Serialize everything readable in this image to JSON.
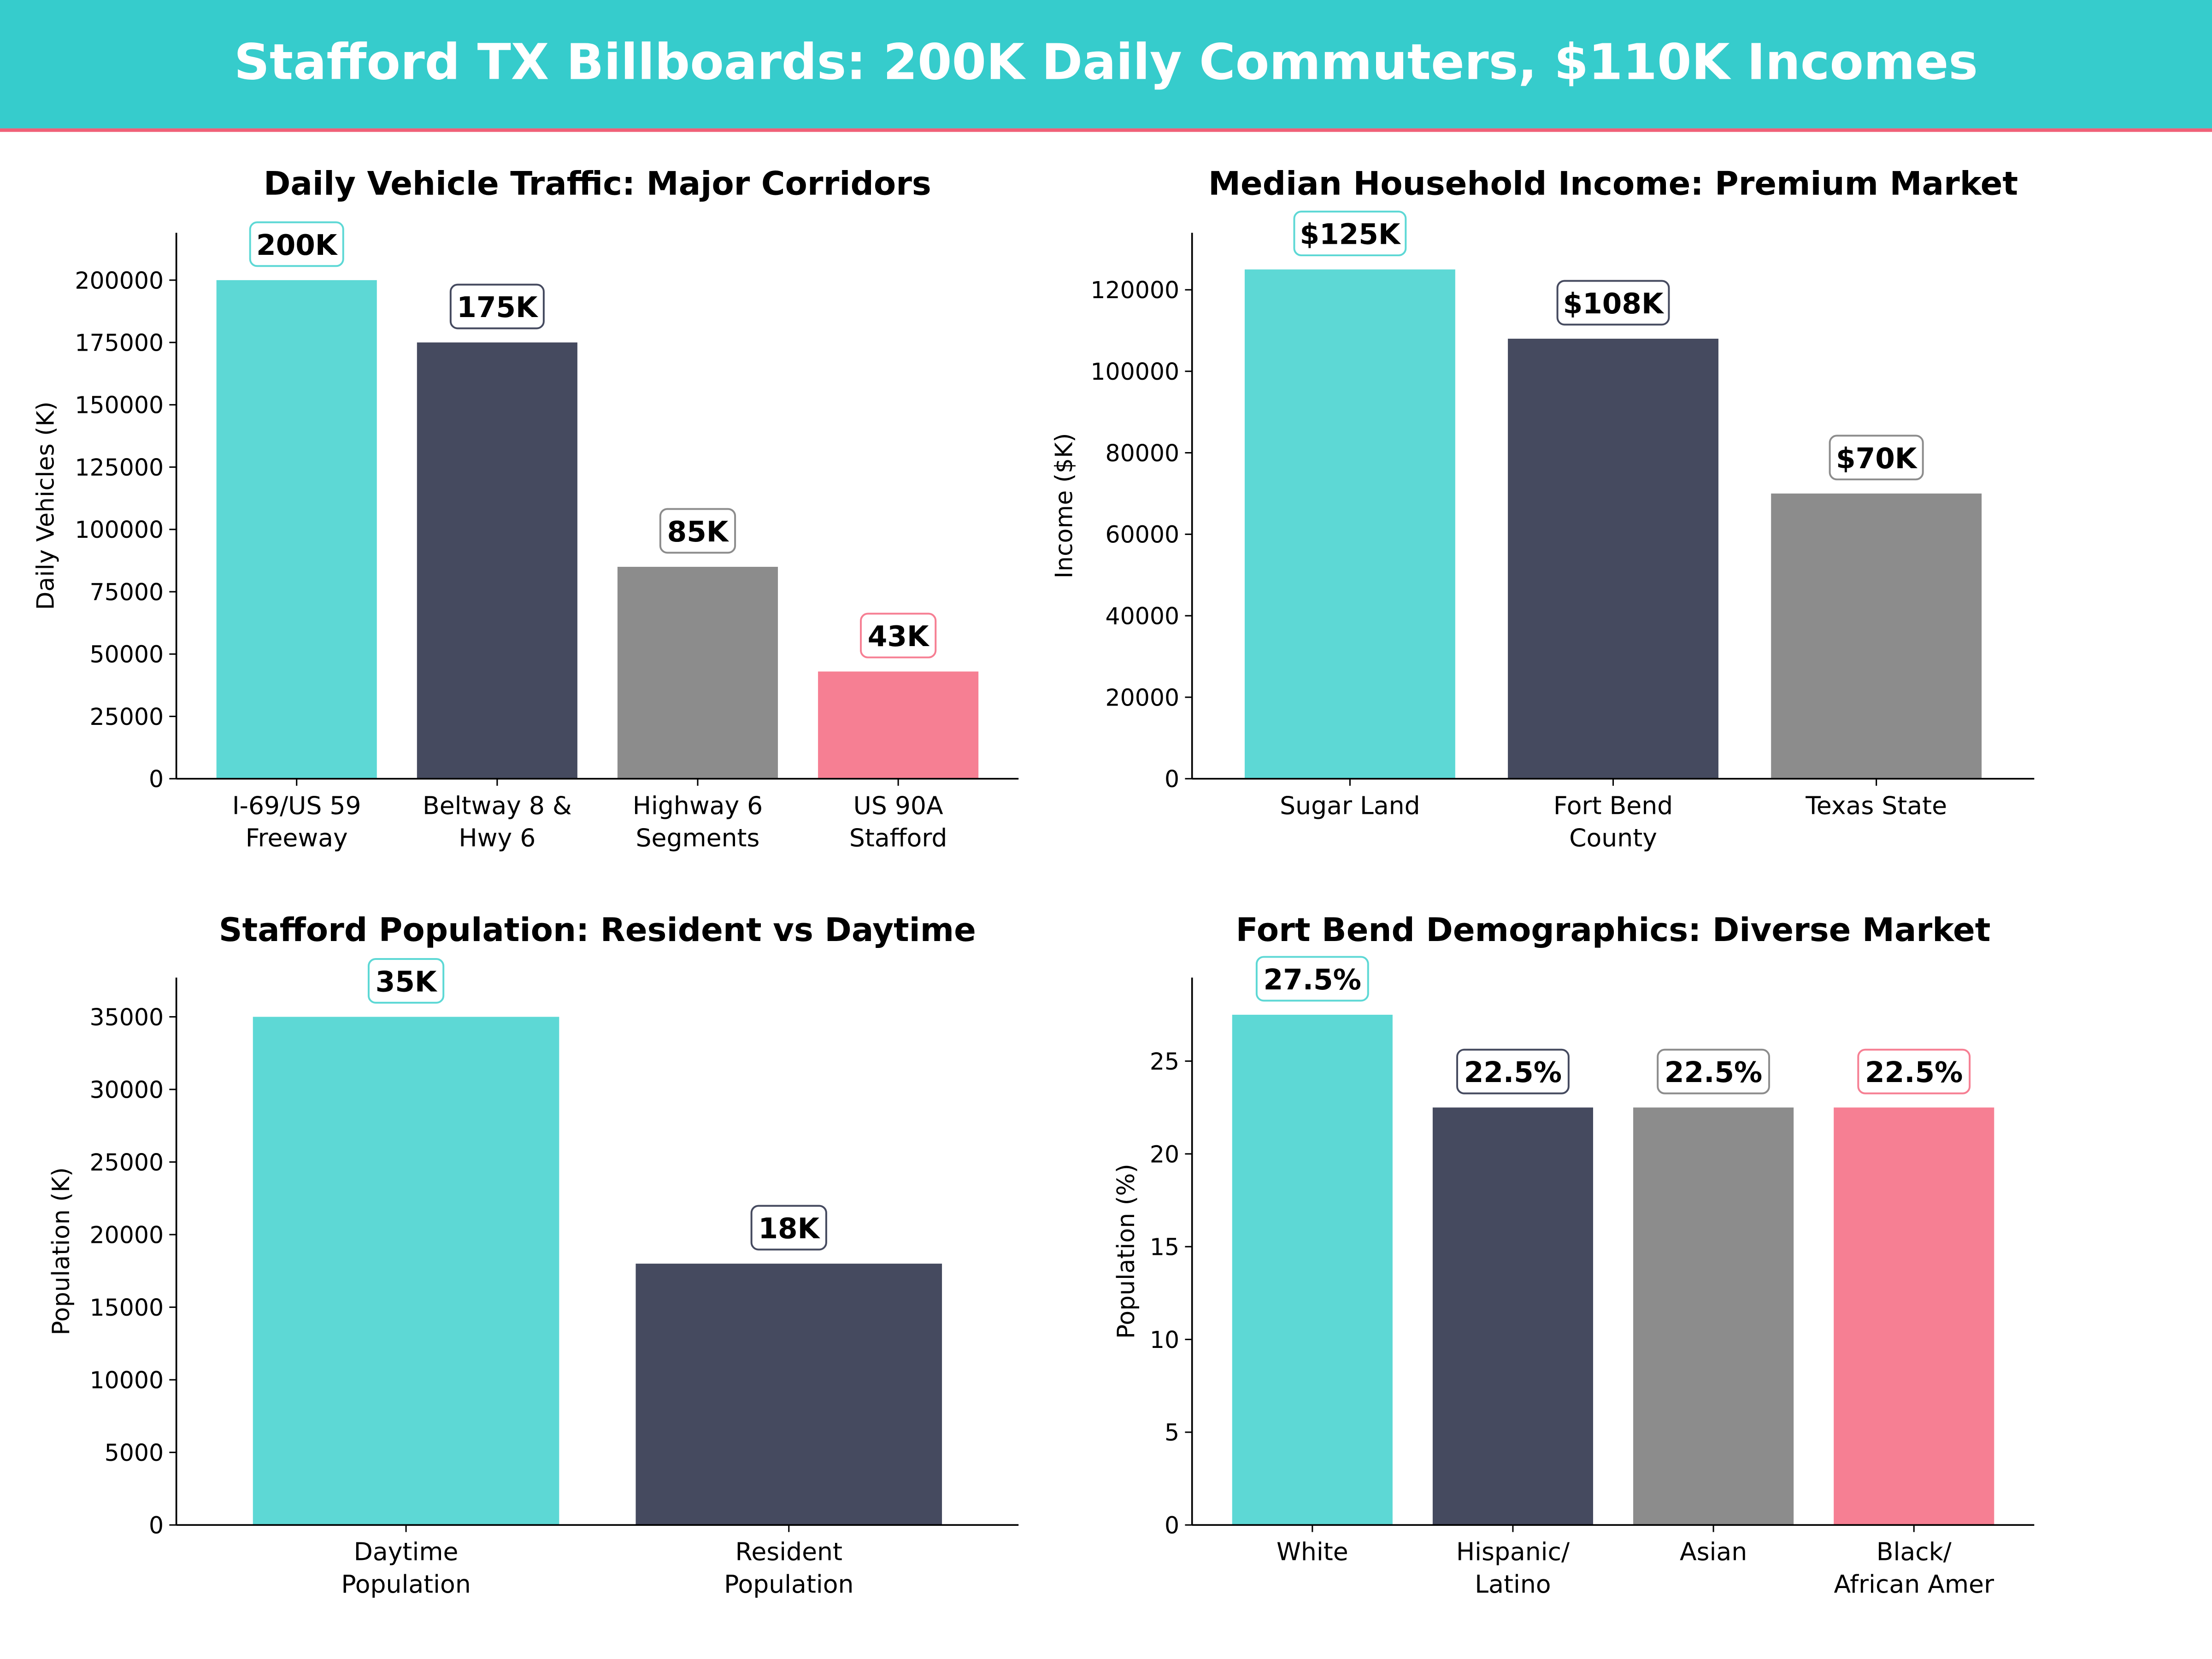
{
  "header": {
    "title": "Stafford TX Billboards: 200K Daily Commuters, $110K Incomes"
  },
  "colors": {
    "header_bg": "#36CCCC",
    "header_rule": "#F06078",
    "teal": "#5DD8D5",
    "navy": "#454A5F",
    "gray": "#8C8C8C",
    "pink": "#F67F93"
  },
  "chart_data": [
    {
      "type": "bar",
      "title": "Daily Vehicle Traffic: Major Corridors",
      "xlabel": "",
      "ylabel": "Daily Vehicles (K)",
      "categories": [
        "I-69/US 59\nFreeway",
        "Beltway 8 &\nHwy 6",
        "Highway 6\nSegments",
        "US 90A\nStafford"
      ],
      "values": [
        200000,
        175000,
        85000,
        43000
      ],
      "data_labels": [
        "200K",
        "175K",
        "85K",
        "43K"
      ],
      "bar_colors": [
        "#5DD8D5",
        "#454A5F",
        "#8C8C8C",
        "#F67F93"
      ],
      "yticks": [
        0,
        25000,
        50000,
        75000,
        100000,
        125000,
        150000,
        175000,
        200000
      ],
      "ylim": [
        0,
        219000
      ],
      "grid": false
    },
    {
      "type": "bar",
      "title": "Median Household Income: Premium Market",
      "xlabel": "",
      "ylabel": "Income ($K)",
      "categories": [
        "Sugar Land",
        "Fort Bend\nCounty",
        "Texas State"
      ],
      "values": [
        125000,
        108000,
        70000
      ],
      "data_labels": [
        "$125K",
        "$108K",
        "$70K"
      ],
      "bar_colors": [
        "#5DD8D5",
        "#454A5F",
        "#8C8C8C"
      ],
      "yticks": [
        0,
        20000,
        40000,
        60000,
        80000,
        100000,
        120000
      ],
      "ylim": [
        0,
        134000
      ],
      "grid": false
    },
    {
      "type": "bar",
      "title": "Stafford Population: Resident vs Daytime",
      "xlabel": "",
      "ylabel": "Population (K)",
      "categories": [
        "Daytime\nPopulation",
        "Resident\nPopulation"
      ],
      "values": [
        35000,
        18000
      ],
      "data_labels": [
        "35K",
        "18K"
      ],
      "bar_colors": [
        "#5DD8D5",
        "#454A5F"
      ],
      "yticks": [
        0,
        5000,
        10000,
        15000,
        20000,
        25000,
        30000,
        35000
      ],
      "ylim": [
        0,
        37700
      ],
      "grid": false
    },
    {
      "type": "bar",
      "title": "Fort Bend Demographics: Diverse Market",
      "xlabel": "",
      "ylabel": "Population (%)",
      "categories": [
        "White",
        "Hispanic/\nLatino",
        "Asian",
        "Black/\nAfrican Amer"
      ],
      "values": [
        27.5,
        22.5,
        22.5,
        22.5
      ],
      "data_labels": [
        "27.5%",
        "22.5%",
        "22.5%",
        "22.5%"
      ],
      "bar_colors": [
        "#5DD8D5",
        "#454A5F",
        "#8C8C8C",
        "#F67F93"
      ],
      "yticks": [
        0,
        5,
        10,
        15,
        20,
        25
      ],
      "ylim": [
        0,
        29.5
      ],
      "grid": false
    }
  ]
}
